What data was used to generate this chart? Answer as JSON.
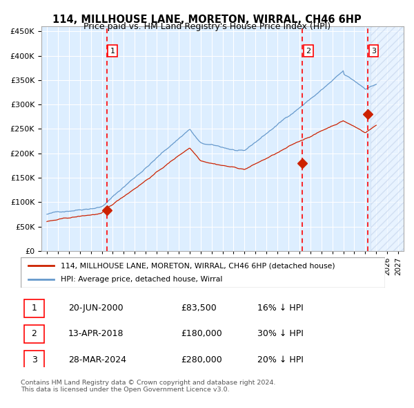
{
  "title": "114, MILLHOUSE LANE, MORETON, WIRRAL, CH46 6HP",
  "subtitle": "Price paid vs. HM Land Registry's House Price Index (HPI)",
  "hpi_color": "#6699cc",
  "price_color": "#cc2200",
  "background_color": "#ddeeff",
  "hatch_color": "#aabbcc",
  "ylim": [
    0,
    460000
  ],
  "yticks": [
    0,
    50000,
    100000,
    150000,
    200000,
    250000,
    300000,
    350000,
    400000,
    450000
  ],
  "xlim_start": 1994.5,
  "xlim_end": 2027.5,
  "sales": [
    {
      "year": 2000.47,
      "price": 83500,
      "label": "1"
    },
    {
      "year": 2018.28,
      "price": 180000,
      "label": "2"
    },
    {
      "year": 2024.24,
      "price": 280000,
      "label": "3"
    }
  ],
  "vlines": [
    2000.47,
    2018.28,
    2024.24
  ],
  "table_rows": [
    {
      "num": "1",
      "date": "20-JUN-2000",
      "price": "£83,500",
      "hpi": "16% ↓ HPI"
    },
    {
      "num": "2",
      "date": "13-APR-2018",
      "price": "£180,000",
      "hpi": "30% ↓ HPI"
    },
    {
      "num": "3",
      "date": "28-MAR-2024",
      "price": "£280,000",
      "hpi": "20% ↓ HPI"
    }
  ],
  "legend_line1": "114, MILLHOUSE LANE, MORETON, WIRRAL, CH46 6HP (detached house)",
  "legend_line2": "HPI: Average price, detached house, Wirral",
  "footer": "Contains HM Land Registry data © Crown copyright and database right 2024.\nThis data is licensed under the Open Government Licence v3.0.",
  "hatch_start": 2024.5,
  "hatch_end": 2027.5
}
